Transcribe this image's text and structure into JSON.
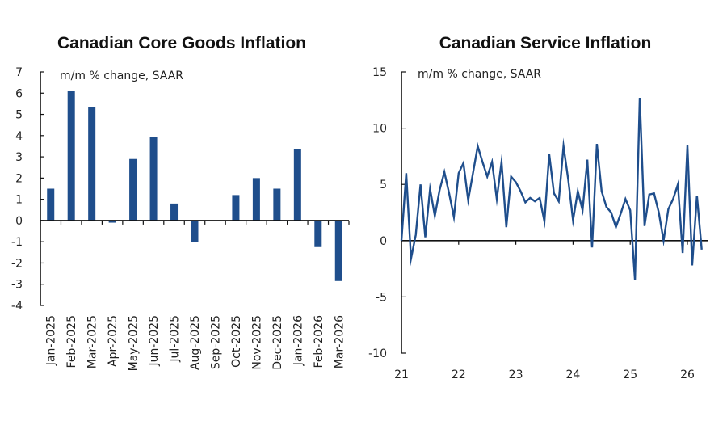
{
  "chart_data": [
    {
      "type": "bar",
      "title": "Canadian Core Goods Inflation",
      "unit_label": "m/m % change, SAAR",
      "xlabel": "",
      "ylabel": "",
      "ylim": [
        -4,
        7
      ],
      "yticks": [
        7,
        6,
        5,
        4,
        3,
        2,
        1,
        0,
        -1,
        -2,
        -3,
        -4
      ],
      "grid": false,
      "legend": "none",
      "color": "#1f4e8c",
      "categories": [
        "Jan-2025",
        "Feb-2025",
        "Mar-2025",
        "Apr-2025",
        "May-2025",
        "Jun-2025",
        "Jul-2025",
        "Aug-2025",
        "Sep-2025",
        "Oct-2025",
        "Nov-2025",
        "Dec-2025",
        "Jan-2026",
        "Feb-2026",
        "Mar-2026"
      ],
      "values": [
        1.5,
        6.1,
        5.35,
        -0.1,
        2.9,
        3.95,
        0.8,
        -1.0,
        0.0,
        1.2,
        2.0,
        1.5,
        3.35,
        -1.25,
        -2.85
      ]
    },
    {
      "type": "line",
      "title": "Canadian Service Inflation",
      "unit_label": "m/m % change, SAAR",
      "xlabel": "",
      "ylabel": "",
      "ylim": [
        -10,
        15
      ],
      "yticks": [
        15,
        10,
        5,
        0,
        -5,
        -10
      ],
      "xticks": [
        "21",
        "22",
        "23",
        "24",
        "25",
        "26"
      ],
      "x_start": "Jan 2021",
      "x_frequency": "monthly",
      "grid": false,
      "legend": "none",
      "color": "#1f4e8c",
      "values": [
        0.0,
        6.0,
        -1.6,
        0.5,
        5.0,
        0.3,
        4.6,
        2.2,
        4.5,
        6.1,
        4.2,
        2.1,
        6.0,
        6.9,
        3.6,
        6.0,
        8.4,
        7.0,
        5.7,
        7.0,
        3.7,
        7.0,
        1.2,
        5.7,
        5.2,
        4.4,
        3.4,
        3.8,
        3.5,
        3.8,
        1.7,
        7.7,
        4.2,
        3.5,
        8.4,
        5.4,
        1.8,
        4.4,
        2.7,
        7.2,
        -0.6,
        8.6,
        4.4,
        3.0,
        2.5,
        1.2,
        2.4,
        3.7,
        2.7,
        -3.5,
        12.7,
        1.3,
        4.1,
        4.2,
        2.5,
        0.0,
        2.8,
        3.7,
        5.0,
        -1.1,
        8.5,
        -2.2,
        4.0,
        -0.8
      ]
    }
  ]
}
